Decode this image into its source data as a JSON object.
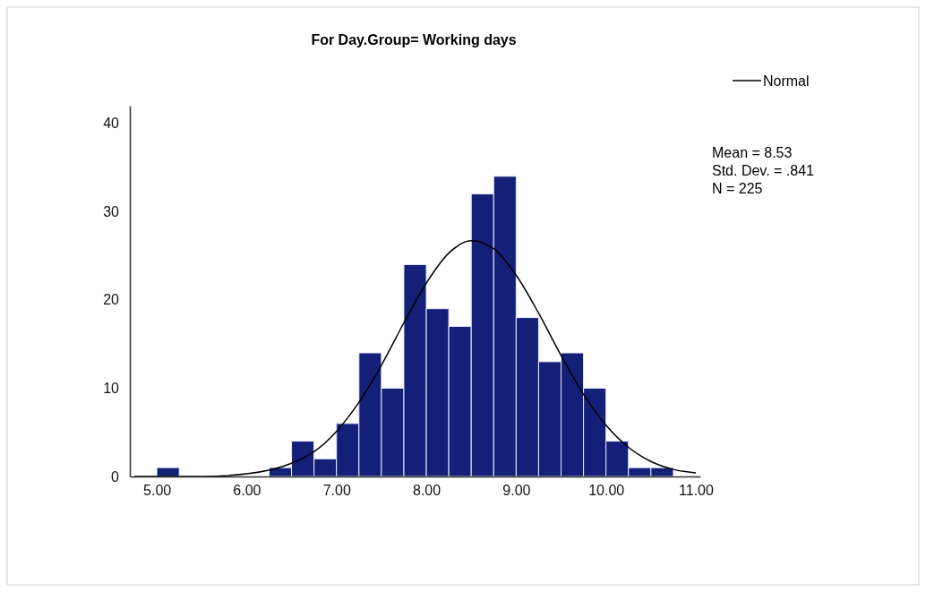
{
  "chart_data": {
    "type": "histogram",
    "title": "For Day.Group= Working days",
    "bins": [
      5.0,
      5.25,
      5.5,
      5.75,
      6.0,
      6.25,
      6.5,
      6.75,
      7.0,
      7.25,
      7.5,
      7.75,
      8.0,
      8.25,
      8.5,
      8.75,
      9.0,
      9.25,
      9.5,
      9.75,
      10.0,
      10.25,
      10.5,
      10.75
    ],
    "series": [
      {
        "color": "#141f78",
        "values": [
          1,
          0,
          0,
          0,
          0,
          1,
          4,
          2,
          6,
          14,
          10,
          24,
          19,
          17,
          32,
          34,
          18,
          13,
          14,
          10,
          4,
          1,
          1
        ]
      },
      {
        "type": "line",
        "name": "Normal",
        "color": "#000000",
        "x": [
          4.75,
          5.5,
          6.0,
          6.5,
          6.75,
          7.0,
          7.25,
          7.5,
          7.75,
          8.0,
          8.25,
          8.5,
          8.75,
          9.0,
          9.25,
          9.5,
          9.75,
          10.0,
          10.25,
          10.5,
          10.75,
          11.0
        ],
        "values": [
          0,
          0,
          0.3,
          1.5,
          2.8,
          5.1,
          8.4,
          12.6,
          17.4,
          21.9,
          25.3,
          26.7,
          25.8,
          22.8,
          18.5,
          13.7,
          9.3,
          5.8,
          3.3,
          1.7,
          0.8,
          0.4
        ]
      }
    ],
    "xlim": [
      4.7,
      11.05
    ],
    "ylim": [
      0,
      42
    ],
    "xticks": [
      {
        "value": 5,
        "label": "5.00"
      },
      {
        "value": 6,
        "label": "6.00"
      },
      {
        "value": 7,
        "label": "7.00"
      },
      {
        "value": 8,
        "label": "8.00"
      },
      {
        "value": 9,
        "label": "9.00"
      },
      {
        "value": 10,
        "label": "10.00"
      },
      {
        "value": 11,
        "label": "11.00"
      }
    ],
    "yticks": [
      0,
      10,
      20,
      30,
      40
    ],
    "legend": "top right",
    "annotations": [
      "Mean = 8.53",
      "Std. Dev. = .841",
      "N = 225"
    ]
  }
}
